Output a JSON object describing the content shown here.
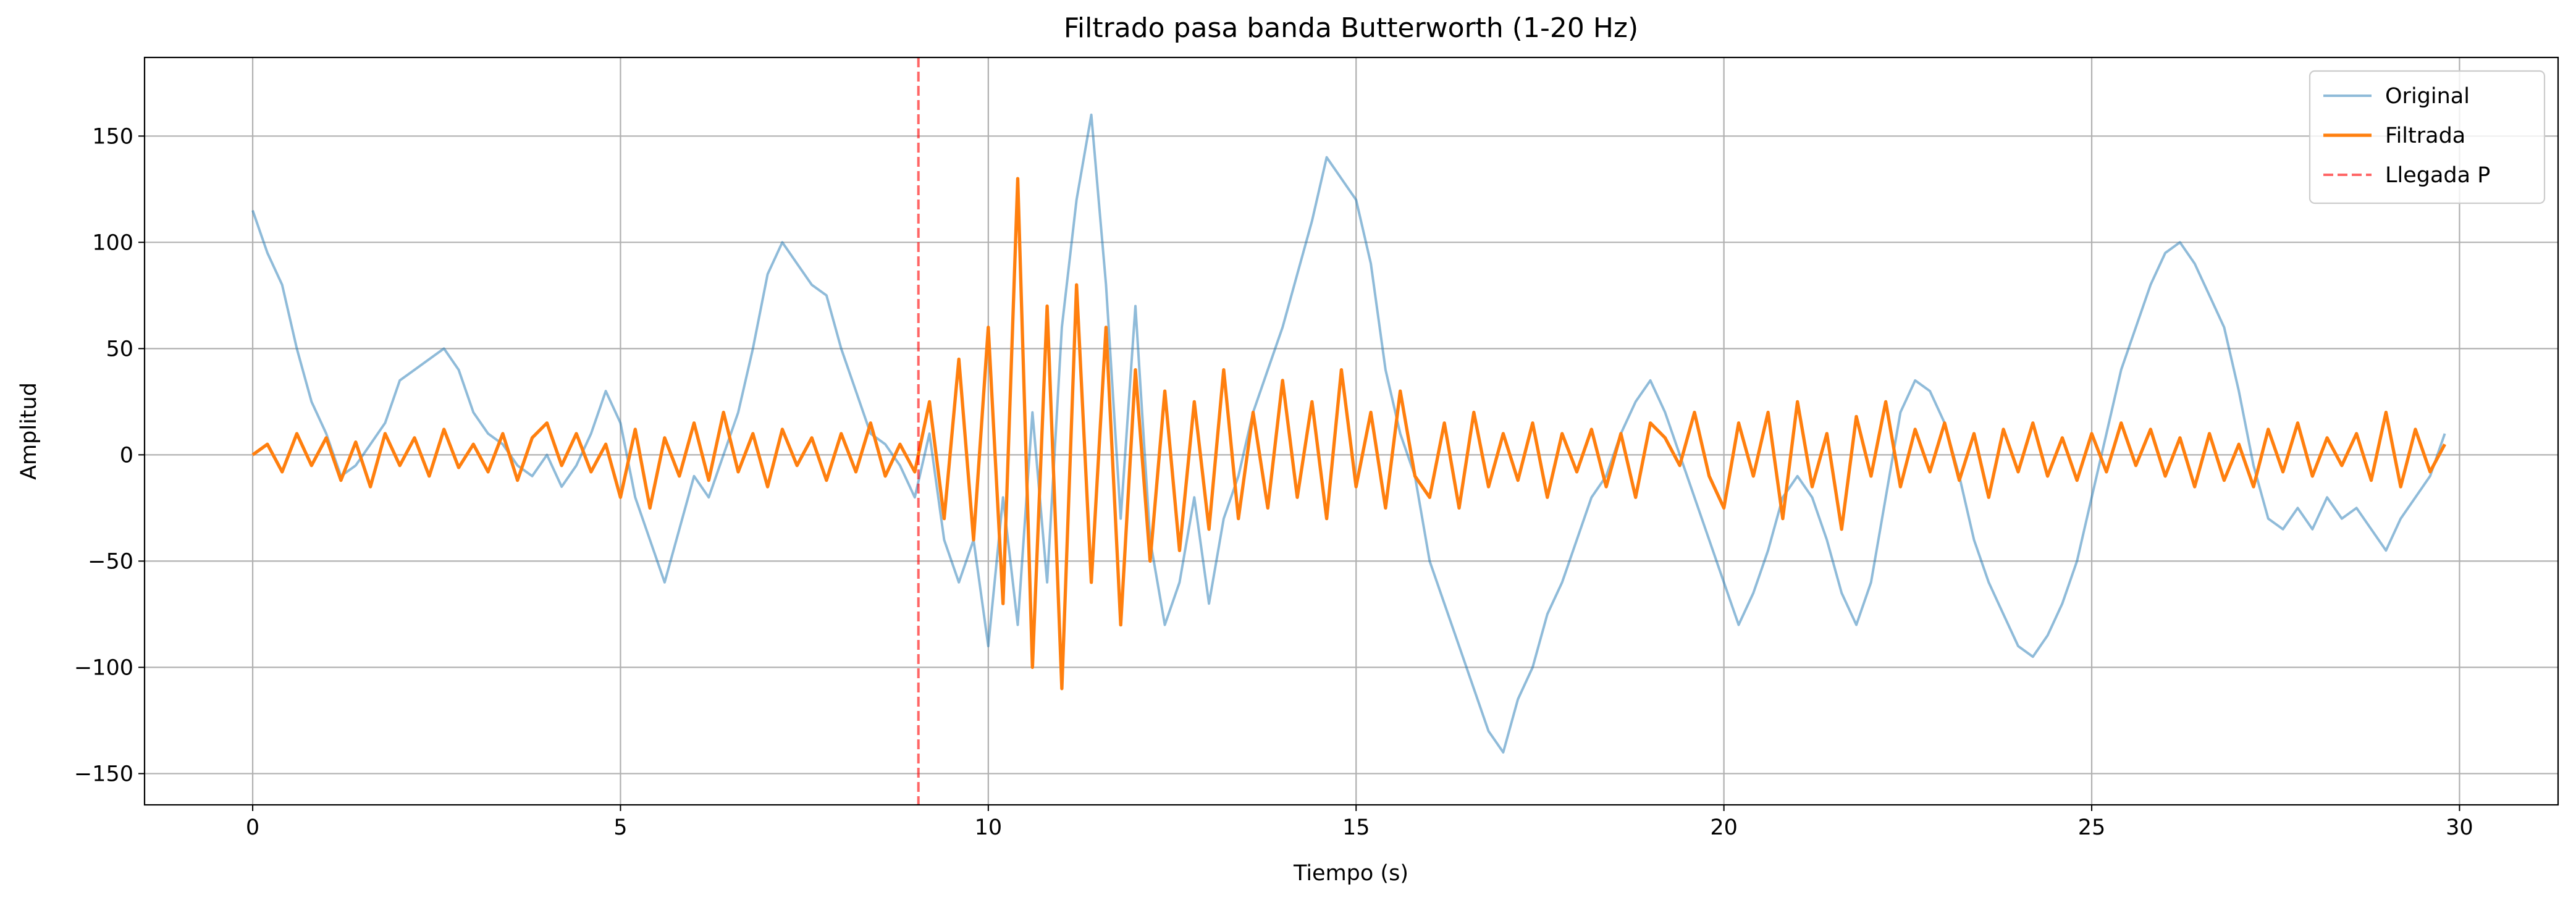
{
  "chart_data": {
    "type": "line",
    "title": "Filtrado pasa banda Butterworth (1-20 Hz)",
    "xlabel": "Tiempo (s)",
    "ylabel": "Amplitud",
    "x": [
      0,
      0.2,
      0.4,
      0.6,
      0.8,
      1,
      1.2,
      1.4,
      1.6,
      1.8,
      2,
      2.2,
      2.4,
      2.6,
      2.8,
      3,
      3.2,
      3.4,
      3.6,
      3.8,
      4,
      4.2,
      4.4,
      4.6,
      4.8,
      5,
      5.2,
      5.4,
      5.6,
      5.8,
      6,
      6.2,
      6.4,
      6.6,
      6.8,
      7,
      7.2,
      7.4,
      7.6,
      7.8,
      8,
      8.2,
      8.4,
      8.6,
      8.8,
      9,
      9.2,
      9.4,
      9.6,
      9.8,
      10,
      10.2,
      10.4,
      10.6,
      10.8,
      11,
      11.2,
      11.4,
      11.6,
      11.8,
      12,
      12.2,
      12.4,
      12.6,
      12.8,
      13,
      13.2,
      13.4,
      13.6,
      13.8,
      14,
      14.2,
      14.4,
      14.6,
      14.8,
      15,
      15.2,
      15.4,
      15.6,
      15.8,
      16,
      16.2,
      16.4,
      16.6,
      16.8,
      17,
      17.2,
      17.4,
      17.6,
      17.8,
      18,
      18.2,
      18.4,
      18.6,
      18.8,
      19,
      19.2,
      19.4,
      19.6,
      19.8,
      20,
      20.2,
      20.4,
      20.6,
      20.8,
      21,
      21.2,
      21.4,
      21.6,
      21.8,
      22,
      22.2,
      22.4,
      22.6,
      22.8,
      23,
      23.2,
      23.4,
      23.6,
      23.8,
      24,
      24.2,
      24.4,
      24.6,
      24.8,
      25,
      25.2,
      25.4,
      25.6,
      25.8,
      26,
      26.2,
      26.4,
      26.6,
      26.8,
      27,
      27.2,
      27.4,
      27.6,
      27.8,
      28,
      28.2,
      28.4,
      28.6,
      28.8,
      29,
      29.2,
      29.4,
      29.6,
      29.8
    ],
    "series": [
      {
        "name": "Original",
        "color": "#1f77b4",
        "alpha": 0.5,
        "width": 1.5,
        "values": [
          115,
          95,
          80,
          50,
          25,
          10,
          -10,
          -5,
          5,
          15,
          35,
          40,
          45,
          50,
          40,
          20,
          10,
          5,
          -5,
          -10,
          0,
          -15,
          -5,
          10,
          30,
          15,
          -20,
          -40,
          -60,
          -35,
          -10,
          -20,
          0,
          20,
          50,
          85,
          100,
          90,
          80,
          75,
          50,
          30,
          10,
          5,
          -5,
          -20,
          10,
          -40,
          -60,
          -40,
          -90,
          -20,
          -80,
          20,
          -60,
          60,
          120,
          160,
          80,
          -30,
          70,
          -40,
          -80,
          -60,
          -20,
          -70,
          -30,
          -10,
          20,
          40,
          60,
          85,
          110,
          140,
          130,
          120,
          90,
          40,
          10,
          -10,
          -50,
          -70,
          -90,
          -110,
          -130,
          -140,
          -115,
          -100,
          -75,
          -60,
          -40,
          -20,
          -10,
          10,
          25,
          35,
          20,
          0,
          -20,
          -40,
          -60,
          -80,
          -65,
          -45,
          -20,
          -10,
          -20,
          -40,
          -65,
          -80,
          -60,
          -20,
          20,
          35,
          30,
          15,
          -10,
          -40,
          -60,
          -75,
          -90,
          -95,
          -85,
          -70,
          -50,
          -20,
          10,
          40,
          60,
          80,
          95,
          100,
          90,
          75,
          60,
          30,
          -5,
          -30,
          -35,
          -25,
          -35,
          -20,
          -30,
          -25,
          -35,
          -45,
          -30,
          -20,
          -10,
          10
        ]
      },
      {
        "name": "Filtrada",
        "color": "#ff7f0e",
        "alpha": 1,
        "width": 2,
        "values": [
          0,
          5,
          -8,
          10,
          -5,
          8,
          -12,
          6,
          -15,
          10,
          -5,
          8,
          -10,
          12,
          -6,
          5,
          -8,
          10,
          -12,
          8,
          15,
          -5,
          10,
          -8,
          5,
          -20,
          12,
          -25,
          8,
          -10,
          15,
          -12,
          20,
          -8,
          10,
          -15,
          12,
          -5,
          8,
          -12,
          10,
          -8,
          15,
          -10,
          5,
          -8,
          25,
          -30,
          45,
          -40,
          60,
          -70,
          130,
          -100,
          70,
          -110,
          80,
          -60,
          60,
          -80,
          40,
          -50,
          30,
          -45,
          25,
          -35,
          40,
          -30,
          20,
          -25,
          35,
          -20,
          25,
          -30,
          40,
          -15,
          20,
          -25,
          30,
          -10,
          -20,
          15,
          -25,
          20,
          -15,
          10,
          -12,
          15,
          -20,
          10,
          -8,
          12,
          -15,
          10,
          -20,
          15,
          8,
          -5,
          20,
          -10,
          -25,
          15,
          -10,
          20,
          -30,
          25,
          -15,
          10,
          -35,
          18,
          -10,
          25,
          -15,
          12,
          -8,
          15,
          -12,
          10,
          -20,
          12,
          -8,
          15,
          -10,
          8,
          -12,
          10,
          -8,
          15,
          -5,
          12,
          -10,
          8,
          -15,
          10,
          -12,
          5,
          -15,
          12,
          -8,
          15,
          -10,
          8,
          -5,
          10,
          -12,
          20,
          -15,
          12,
          -8,
          5
        ]
      }
    ],
    "vlines": [
      {
        "name": "Llegada P",
        "x": 9.05,
        "color": "#ff0000",
        "alpha": 0.6,
        "dashed": true
      }
    ],
    "xlim": [
      -1.47,
      31.34
    ],
    "ylim": [
      -164.7,
      187
    ],
    "xticks": [
      0,
      5,
      10,
      15,
      20,
      25,
      30
    ],
    "yticks": [
      {
        "value": -150,
        "label": "−150"
      },
      {
        "value": -100,
        "label": "−100"
      },
      {
        "value": -50,
        "label": "−50"
      },
      0,
      50,
      100,
      150
    ],
    "grid": true,
    "legend": "upper right"
  }
}
